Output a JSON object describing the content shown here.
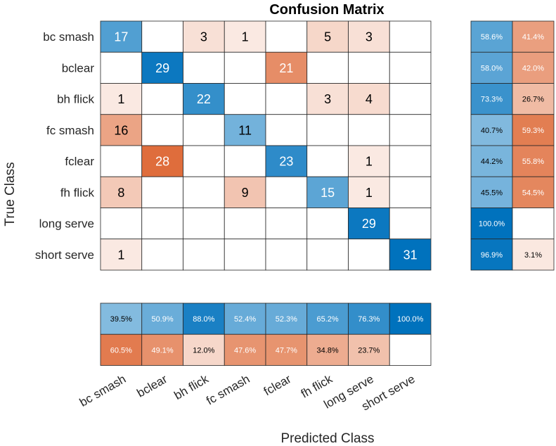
{
  "chart_data": {
    "type": "heatmap",
    "title": "Confusion Matrix",
    "xlabel": "Predicted Class",
    "ylabel": "True Class",
    "classes": [
      "bc smash",
      "bclear",
      "bh flick",
      "fc smash",
      "fclear",
      "fh flick",
      "long serve",
      "short serve"
    ],
    "matrix": [
      [
        17,
        0,
        3,
        1,
        0,
        5,
        3,
        0
      ],
      [
        0,
        29,
        0,
        0,
        21,
        0,
        0,
        0
      ],
      [
        1,
        0,
        22,
        0,
        0,
        3,
        4,
        0
      ],
      [
        16,
        0,
        0,
        11,
        0,
        0,
        0,
        0
      ],
      [
        0,
        28,
        0,
        0,
        23,
        0,
        1,
        0
      ],
      [
        8,
        0,
        0,
        9,
        0,
        15,
        1,
        0
      ],
      [
        0,
        0,
        0,
        0,
        0,
        0,
        29,
        0
      ],
      [
        1,
        0,
        0,
        0,
        0,
        0,
        0,
        31
      ]
    ],
    "row_summary": {
      "correct": [
        "58.6%",
        "58.0%",
        "73.3%",
        "40.7%",
        "44.2%",
        "45.5%",
        "100.0%",
        "96.9%"
      ],
      "incorrect": [
        "41.4%",
        "42.0%",
        "26.7%",
        "59.3%",
        "55.8%",
        "54.5%",
        "",
        "3.1%"
      ]
    },
    "column_summary": {
      "correct": [
        "39.5%",
        "50.9%",
        "88.0%",
        "52.4%",
        "52.3%",
        "65.2%",
        "76.3%",
        "100.0%"
      ],
      "incorrect": [
        "60.5%",
        "49.1%",
        "12.0%",
        "47.6%",
        "47.7%",
        "34.8%",
        "23.7%",
        ""
      ]
    },
    "colors": {
      "correct": "#0072BD",
      "incorrect": "#D95319",
      "background": "#FFFFFF",
      "gridline": "#262626"
    }
  }
}
